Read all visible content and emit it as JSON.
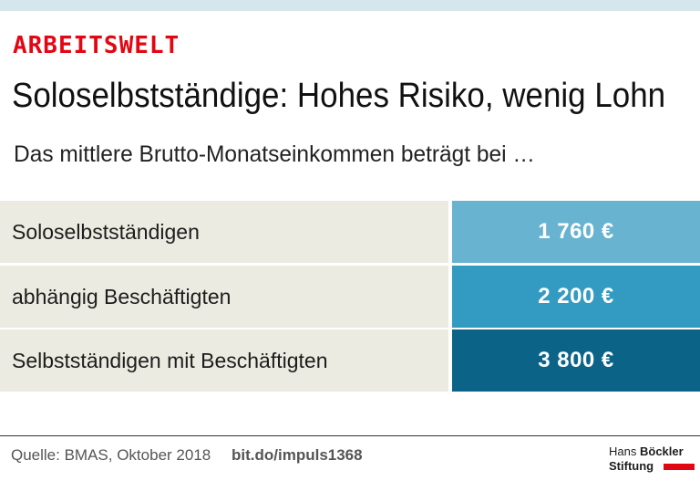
{
  "header": {
    "category": "ARBEITSWELT",
    "title": "Soloselbstständige: Hohes Risiko, wenig Lohn",
    "subtitle": "Das mittlere Brutto-Monatseinkommen beträgt bei …"
  },
  "colors": {
    "accent": "#e30613",
    "top_band": "#d5e6ec",
    "row_label_bg": "#ecebe1",
    "value_light": "#67b3d0",
    "value_mid": "#339bc1",
    "value_dark": "#0b6488"
  },
  "chart_data": {
    "type": "table",
    "title": "Soloselbstständige: Hohes Risiko, wenig Lohn",
    "subtitle": "Das mittlere Brutto-Monatseinkommen beträgt bei …",
    "columns": [
      "",
      ""
    ],
    "rows": [
      {
        "label": "Soloselbstständigen",
        "value": 1760,
        "display": "1 760 €",
        "color": "#67b3d0"
      },
      {
        "label": "abhängig Beschäftigten",
        "value": 2200,
        "display": "2 200 €",
        "color": "#339bc1"
      },
      {
        "label": "Selbstständigen mit Beschäftigten",
        "value": 3800,
        "display": "3 800 €",
        "color": "#0b6488"
      }
    ],
    "unit": "€"
  },
  "footer": {
    "source": "Quelle: BMAS, Oktober 2018",
    "link": "bit.do/impuls1368",
    "logo_line1_a": "Hans",
    "logo_line1_b": "Böckler",
    "logo_line2": "Stiftung"
  }
}
